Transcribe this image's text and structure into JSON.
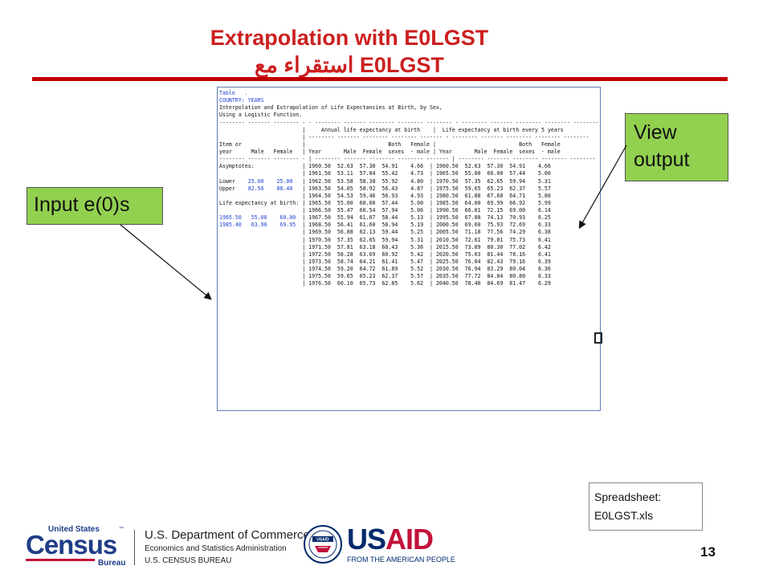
{
  "slide": {
    "title": "Extrapolation with E0LGST",
    "title_arabic": "استقراء مع E0LGST",
    "page_number": "13",
    "rule_color": "#c00000"
  },
  "callouts": {
    "input": "Input e(0)s",
    "view_line1": "View",
    "view_line2": "output",
    "color": "#92d050"
  },
  "spreadsheet_note": {
    "line1": "Spreadsheet:",
    "line2": "E0LGST.xls"
  },
  "sheet": {
    "lines": [
      "Table   .",
      "COUNTRY: YEARS",
      "Interpolation and Extrapolation of Life Expectancies at Birth, by Sex,",
      "Using a Logistic Function.",
      "-------- ------- -------- - - -------- ------- -------- -------- -------- - -------- ------- -------- -------- --------",
      "                          |     Annual life expectancy at birth    |  Life expectancy at birth every 5 years",
      "                          | -------- ------- -------- -------- ------- - -------- ------- -------- -------- --------",
      "Item or                   |                          Both   Female |                          Both   Female",
      "year      Male   Female   | Year       Male  Female  sexes  - male | Year       Male  Female  sexes  - male",
      "-------- ------- -------- - | -------- ------- -------- -------- ------- | -------- ------- -------- -------- --------",
      "Asymptotes:               | 1960.50  52.63  57.30  54.91    4.66  | 1960.50  52.63  57.30  54.91    4.66",
      "                          | 1961.50  53.11  57.84  55.42    4.73  | 1965.50  55.00  60.00  57.44    5.00",
      "Lower    25.00    25.00   | 1962.50  53.58  58.38  55.92    4.80  | 1970.50  57.35  62.65  59.94    5.31",
      "Upper    82.56    88.40   | 1963.50  54.05  58.92  56.43    4.87  | 1975.50  59.65  65.23  62.37    5.57",
      "                          | 1964.50  54.53  59.46  56.93    4.93  | 1980.50  61.88  67.68  64.71    5.80",
      "Life expectancy at birth: | 1965.50  55.00  60.00  57.44    5.00  | 1985.50  64.00  69.99  66.92    5.99",
      "                          | 1966.50  55.47  60.54  57.94    5.06  | 1990.50  66.01  72.15  69.00    6.14",
      "1965.50   55.00    60.00  | 1967.50  55.94  61.07  58.44    5.13  | 1995.50  67.88  74.13  70.93    6.25",
      "1985.40   63.96    69.95  | 1968.50  56.41  61.60  58.94    5.19  | 2000.50  69.60  75.93  72.69    6.33",
      "                          | 1969.50  56.88  62.13  59.44    5.25  | 2005.50  71.18  77.56  74.29    6.38",
      "                          | 1970.50  57.35  62.65  59.94    5.31  | 2010.50  72.61  79.01  75.73    6.41",
      "                          | 1971.50  57.81  63.18  60.43    5.36  | 2015.50  73.89  80.30  77.02    6.42",
      "                          | 1972.50  58.28  63.69  60.92    5.42  | 2020.50  75.03  81.44  78.16    6.41",
      "                          | 1973.50  58.74  64.21  61.41    5.47  | 2025.50  76.04  82.43  79.16    6.39",
      "                          | 1974.50  59.20  64.72  61.89    5.52  | 2030.50  76.94  83.29  80.04    6.36",
      "                          | 1975.50  59.65  65.23  62.37    5.57  | 2035.50  77.72  84.04  80.80    6.33",
      "                          | 1976.50  60.10  65.73  62.85    5.62  | 2040.50  78.40  84.69  81.47    6.29"
    ]
  },
  "footer": {
    "census_top": "United States",
    "census_tm": "™",
    "census_main": "Census",
    "census_bureau": "Bureau",
    "dept_line1": "U.S. Department of Commerce",
    "dept_line2": "Economics and Statistics Administration",
    "dept_line3": "U.S. CENSUS BUREAU",
    "seal_text": "USAID",
    "usaid_us": "US",
    "usaid_aid": "AID",
    "usaid_tagline": "FROM THE AMERICAN PEOPLE"
  }
}
